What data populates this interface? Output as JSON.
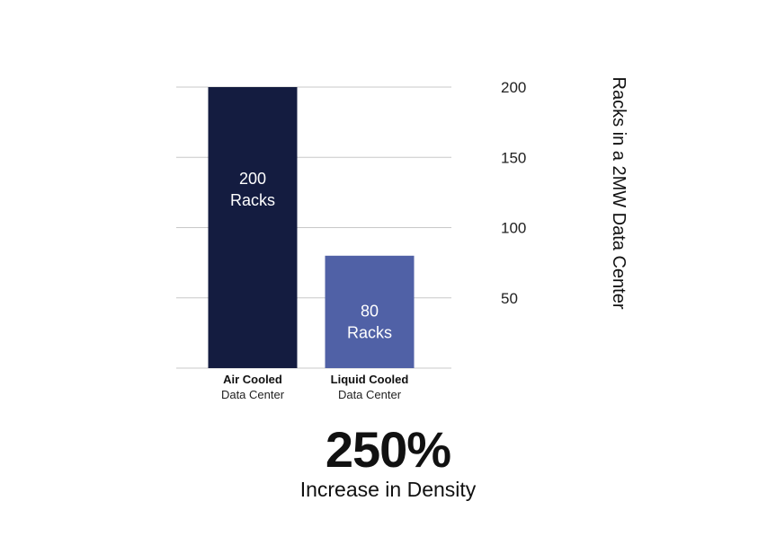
{
  "chart_data": {
    "type": "bar",
    "categories": [
      {
        "line1": "Air Cooled",
        "line2": "Data Center"
      },
      {
        "line1": "Liquid Cooled",
        "line2": "Data Center"
      }
    ],
    "values": [
      200,
      80
    ],
    "data_labels": [
      {
        "line1": "200",
        "line2": "Racks"
      },
      {
        "line1": "80",
        "line2": "Racks"
      }
    ],
    "bar_colors": [
      "#141c40",
      "#5061a6"
    ],
    "ylabel": "Racks in a 2MW Data Center",
    "ylim": [
      0,
      200
    ],
    "y_ticks": [
      50,
      100,
      150,
      200
    ],
    "y_axis_side": "right",
    "grid": true,
    "grid_color": "#c8c8c8"
  },
  "highlight": {
    "value": "250%",
    "caption": "Increase in Density"
  }
}
